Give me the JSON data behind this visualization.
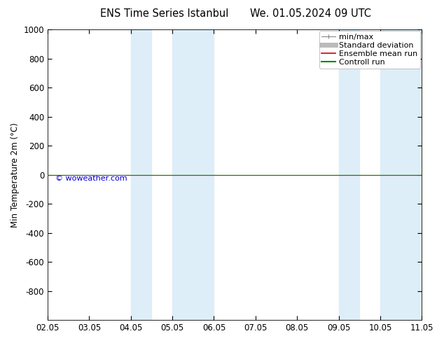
{
  "title_left": "ENS Time Series Istanbul",
  "title_right": "We. 01.05.2024 09 UTC",
  "ylabel": "Min Temperature 2m (°C)",
  "ylim_top": -1000,
  "ylim_bottom": 1000,
  "yticks": [
    -800,
    -600,
    -400,
    -200,
    0,
    200,
    400,
    600,
    800,
    1000
  ],
  "xlim": [
    0.0,
    9.0
  ],
  "xtick_labels": [
    "02.05",
    "03.05",
    "04.05",
    "05.05",
    "06.05",
    "07.05",
    "08.05",
    "09.05",
    "10.05",
    "11.05"
  ],
  "xtick_positions": [
    0,
    1,
    2,
    3,
    4,
    5,
    6,
    7,
    8,
    9
  ],
  "shade_bands": [
    [
      2.0,
      2.5
    ],
    [
      3.0,
      4.0
    ],
    [
      7.0,
      7.5
    ],
    [
      8.0,
      9.0
    ]
  ],
  "shade_color": "#ddeef8",
  "green_line_y": 0,
  "green_line_color": "#008800",
  "red_line_color": "#cc0000",
  "legend_labels": [
    "min/max",
    "Standard deviation",
    "Ensemble mean run",
    "Controll run"
  ],
  "watermark": "© woweather.com",
  "watermark_color": "#0000cc",
  "bg_color": "#ffffff",
  "plot_bg": "#ffffff",
  "font_size": 8.5,
  "title_font_size": 10.5
}
